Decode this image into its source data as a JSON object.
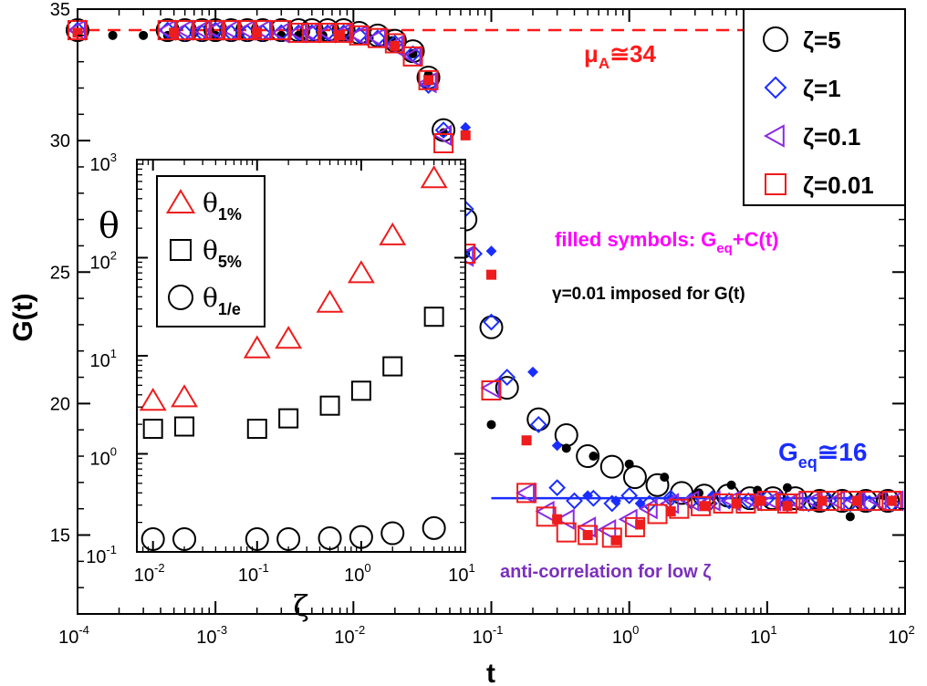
{
  "colors": {
    "zeta5": "#000000",
    "zeta1": "#1a2dff",
    "zeta01": "#8a2be2",
    "zeta001": "#ee1c1c",
    "filled_note": "#ff00ff",
    "mu_line": "#ff1a1a",
    "geq_line": "#1a2dff",
    "anticorr": "#7b2fbe"
  },
  "chart_data": [
    {
      "type": "scatter",
      "title": "",
      "xlabel": "t",
      "ylabel": "G(t)",
      "xscale": "log",
      "xlim": [
        0.0001,
        100
      ],
      "ylim": [
        12,
        35
      ],
      "x_ticks": [
        {
          "base": "10",
          "exp": "-4",
          "value": 0.0001
        },
        {
          "base": "10",
          "exp": "-3",
          "value": 0.001
        },
        {
          "base": "10",
          "exp": "-2",
          "value": 0.01
        },
        {
          "base": "10",
          "exp": "-1",
          "value": 0.1
        },
        {
          "base": "10",
          "exp": "0",
          "value": 1
        },
        {
          "base": "10",
          "exp": "1",
          "value": 10
        },
        {
          "base": "10",
          "exp": "2",
          "value": 100
        }
      ],
      "y_ticks": [
        {
          "label": "15",
          "value": 15
        },
        {
          "label": "20",
          "value": 20
        },
        {
          "label": "25",
          "value": 25
        },
        {
          "label": "30",
          "value": 30
        },
        {
          "label": "35",
          "value": 35
        }
      ],
      "legend": {
        "placement": "top-right",
        "entries": [
          {
            "label": "ζ=5",
            "marker": "circle",
            "color": "#000000"
          },
          {
            "label": "ζ=1",
            "marker": "diamond",
            "color": "#1a2dff"
          },
          {
            "label": "ζ=0.1",
            "marker": "triangle-left",
            "color": "#8a2be2"
          },
          {
            "label": "ζ=0.01",
            "marker": "square",
            "color": "#ee1c1c"
          }
        ]
      },
      "reference_lines": [
        {
          "name": "mu_A",
          "y": 34.2,
          "x_from": 0.0001,
          "x_to": 100,
          "style": "dashed",
          "color": "#ff1a1a"
        },
        {
          "name": "G_eq",
          "y": 16.4,
          "x_from": 0.1,
          "x_to": 100,
          "style": "solid",
          "color": "#1a2dff"
        }
      ],
      "annotations": {
        "mu": {
          "main": "μ",
          "sub": "A",
          "rest": "≅34"
        },
        "geq": {
          "main": "G",
          "sub": "eq",
          "rest": "≅16"
        },
        "filled": {
          "prefix": "filled symbols: G",
          "sub": "eq",
          "rest": "+C(t)"
        },
        "gamma": "γ=0.01 imposed for G(t)",
        "anticorr": "anti-correlation for low ζ"
      },
      "series": [
        {
          "name": "ζ=5",
          "marker": "circle",
          "filled": false,
          "color": "#000000",
          "x": [
            0.0001,
            0.00045,
            0.0006,
            0.0008,
            0.001,
            0.0013,
            0.0017,
            0.0022,
            0.003,
            0.004,
            0.005,
            0.0065,
            0.0085,
            0.011,
            0.015,
            0.02,
            0.027,
            0.035,
            0.045,
            0.065,
            0.1,
            0.13,
            0.22,
            0.35,
            0.5,
            0.75,
            1.1,
            1.6,
            2.4,
            3.5,
            5.2,
            7.5,
            11,
            16,
            24,
            35,
            52,
            75
          ],
          "y": [
            34.2,
            34.2,
            34.2,
            34.2,
            34.2,
            34.2,
            34.2,
            34.2,
            34.2,
            34.2,
            34.2,
            34.2,
            34.2,
            34.1,
            34.0,
            33.8,
            33.4,
            32.4,
            30.4,
            27.0,
            22.9,
            20.6,
            19.4,
            18.8,
            18.0,
            17.6,
            17.2,
            16.9,
            16.6,
            16.5,
            16.5,
            16.4,
            16.4,
            16.4,
            16.3,
            16.3,
            16.3,
            16.3
          ]
        },
        {
          "name": "ζ=5 G_eq+C(t)",
          "marker": "dot",
          "filled": true,
          "color": "#000000",
          "x": [
            0.0001,
            0.00018,
            0.0003,
            0.00045,
            0.0007,
            0.001,
            0.0015,
            0.002,
            0.003,
            0.004,
            0.006,
            0.009,
            0.013,
            0.019,
            0.027,
            0.035,
            0.045,
            0.065,
            0.1,
            0.35,
            0.55,
            1.0,
            1.8,
            3.2,
            5.5,
            8.5,
            14,
            23,
            40,
            70
          ],
          "y": [
            34.1,
            34.0,
            34.0,
            34.0,
            34.1,
            34.0,
            34.0,
            34.1,
            34.0,
            34.0,
            34.0,
            33.9,
            33.9,
            33.8,
            33.3,
            32.5,
            30.3,
            25.7,
            19.2,
            18.3,
            18.0,
            17.7,
            17.2,
            16.6,
            16.9,
            16.7,
            16.8,
            16.1,
            15.7,
            16.5
          ]
        },
        {
          "name": "ζ=1",
          "marker": "diamond",
          "filled": false,
          "color": "#1a2dff",
          "x": [
            0.0001,
            0.00045,
            0.0006,
            0.0008,
            0.001,
            0.0013,
            0.0017,
            0.0022,
            0.003,
            0.004,
            0.005,
            0.0065,
            0.0085,
            0.011,
            0.015,
            0.02,
            0.027,
            0.035,
            0.045,
            0.065,
            0.075,
            0.1,
            0.13,
            0.22,
            0.3,
            0.4,
            0.55,
            0.75,
            1.0,
            1.4,
            2.0,
            2.8,
            3.8,
            5.3,
            7.3,
            10,
            14,
            20,
            28,
            40,
            55,
            80
          ],
          "y": [
            34.2,
            34.2,
            34.1,
            34.1,
            34.2,
            34.1,
            34.1,
            34.1,
            34.1,
            34.1,
            34.1,
            34.1,
            34.1,
            34.0,
            33.9,
            33.7,
            33.3,
            32.1,
            30.4,
            27.4,
            25.7,
            23.1,
            21.0,
            19.2,
            16.8,
            16.3,
            16.4,
            16.2,
            16.5,
            16.2,
            16.4,
            16.3,
            16.2,
            16.3,
            16.3,
            16.4,
            16.2,
            16.2,
            16.3,
            16.2,
            16.2,
            16.2
          ]
        },
        {
          "name": "ζ=1 G_eq+C(t)",
          "marker": "diamond-small",
          "filled": true,
          "color": "#1a2dff",
          "x": [
            0.0001,
            0.0005,
            0.002,
            0.008,
            0.02,
            0.035,
            0.065,
            0.1,
            0.2,
            0.3,
            0.5,
            0.8,
            1.2,
            2.0,
            4.0,
            8.0,
            14,
            25,
            50,
            80
          ],
          "y": [
            34.1,
            34.1,
            34.0,
            34.0,
            33.6,
            32.2,
            30.5,
            25.8,
            21.2,
            18.4,
            16.5,
            16.3,
            16.2,
            16.4,
            16.5,
            16.4,
            16.3,
            16.3,
            16.4,
            16.3
          ]
        },
        {
          "name": "ζ=0.1",
          "marker": "triangle-left",
          "filled": false,
          "color": "#8a2be2",
          "x": [
            0.0001,
            0.00045,
            0.0006,
            0.0008,
            0.001,
            0.0013,
            0.0017,
            0.0022,
            0.003,
            0.004,
            0.005,
            0.0065,
            0.0085,
            0.011,
            0.015,
            0.02,
            0.027,
            0.035,
            0.045,
            0.065,
            0.1,
            0.18,
            0.25,
            0.35,
            0.5,
            0.7,
            1.0,
            1.4,
            2.0,
            2.8,
            4.0,
            5.6,
            8.0,
            11,
            16,
            22,
            32,
            45,
            64,
            85
          ],
          "y": [
            34.2,
            34.2,
            34.2,
            34.2,
            34.2,
            34.2,
            34.2,
            34.2,
            34.1,
            34.1,
            34.1,
            34.1,
            34.1,
            34.0,
            33.9,
            33.6,
            33.2,
            32.2,
            30.2,
            25.6,
            20.6,
            16.6,
            15.9,
            15.6,
            15.3,
            15.2,
            15.6,
            16.0,
            16.2,
            16.3,
            16.3,
            16.3,
            16.3,
            16.3,
            16.3,
            16.3,
            16.3,
            16.3,
            16.3,
            16.3
          ]
        },
        {
          "name": "ζ=0.01",
          "marker": "square",
          "filled": false,
          "color": "#ee1c1c",
          "x": [
            0.0001,
            0.00045,
            0.0006,
            0.0008,
            0.001,
            0.0013,
            0.0017,
            0.0022,
            0.003,
            0.004,
            0.005,
            0.0065,
            0.0085,
            0.011,
            0.015,
            0.02,
            0.027,
            0.035,
            0.045,
            0.065,
            0.1,
            0.18,
            0.25,
            0.35,
            0.5,
            0.75,
            1.1,
            1.6,
            2.3,
            3.3,
            4.8,
            7.0,
            10,
            14,
            20,
            28,
            40,
            56,
            80
          ],
          "y": [
            34.2,
            34.2,
            34.2,
            34.2,
            34.2,
            34.2,
            34.2,
            34.2,
            34.2,
            34.1,
            34.1,
            34.1,
            34.1,
            34.0,
            33.9,
            33.7,
            33.2,
            32.3,
            29.9,
            25.7,
            20.5,
            16.6,
            15.7,
            15.1,
            15.0,
            14.9,
            15.3,
            15.8,
            16.0,
            16.1,
            16.2,
            16.2,
            16.3,
            16.2,
            16.3,
            16.3,
            16.3,
            16.3,
            16.3
          ]
        },
        {
          "name": "ζ=0.01 G_eq+C(t)",
          "marker": "square-small",
          "filled": true,
          "color": "#ee1c1c",
          "x": [
            0.0001,
            0.0005,
            0.002,
            0.008,
            0.02,
            0.035,
            0.065,
            0.1,
            0.18,
            0.3,
            0.5,
            0.8,
            1.2,
            2.0,
            3.5,
            6.0,
            9.0,
            14,
            25,
            45,
            80
          ],
          "y": [
            34.1,
            34.1,
            34.1,
            34.0,
            33.6,
            32.3,
            30.2,
            24.9,
            18.6,
            15.6,
            15.0,
            14.8,
            15.4,
            15.9,
            16.1,
            16.2,
            16.3,
            16.1,
            16.3,
            16.3,
            16.3
          ]
        }
      ]
    },
    {
      "type": "scatter",
      "title": "",
      "xlabel": "ζ",
      "ylabel": "θ",
      "xscale": "log",
      "yscale": "log",
      "xlim": [
        0.007,
        10
      ],
      "ylim": [
        0.1,
        1000
      ],
      "x_ticks": [
        {
          "base": "10",
          "exp": "-2",
          "value": 0.01
        },
        {
          "base": "10",
          "exp": "-1",
          "value": 0.1
        },
        {
          "base": "10",
          "exp": "0",
          "value": 1
        },
        {
          "base": "10",
          "exp": "1",
          "value": 10
        }
      ],
      "y_ticks": [
        {
          "base": "10",
          "exp": "-1",
          "value": 0.1
        },
        {
          "base": "10",
          "exp": "0",
          "value": 1
        },
        {
          "base": "10",
          "exp": "1",
          "value": 10
        },
        {
          "base": "10",
          "exp": "2",
          "value": 100
        },
        {
          "base": "10",
          "exp": "3",
          "value": 1000
        }
      ],
      "legend": {
        "placement": "top-left",
        "entries": [
          {
            "label": "θ",
            "sub": "1%",
            "marker": "triangle",
            "color": "#ee1c1c"
          },
          {
            "label": "θ",
            "sub": "5%",
            "marker": "square",
            "color": "#000000"
          },
          {
            "label": "θ",
            "sub": "1/e",
            "marker": "circle",
            "color": "#000000"
          }
        ]
      },
      "series": [
        {
          "name": "θ1%",
          "marker": "triangle",
          "color": "#ee1c1c",
          "x": [
            0.01,
            0.02,
            0.1,
            0.2,
            0.5,
            1,
            2,
            5
          ],
          "y": [
            3.5,
            3.8,
            12,
            15,
            35,
            70,
            170,
            650
          ]
        },
        {
          "name": "θ5%",
          "marker": "square",
          "color": "#000000",
          "x": [
            0.01,
            0.02,
            0.1,
            0.2,
            0.5,
            1,
            2,
            5
          ],
          "y": [
            1.8,
            1.9,
            1.8,
            2.3,
            3.1,
            4.4,
            7.8,
            25
          ]
        },
        {
          "name": "θ1/e",
          "marker": "circle",
          "color": "#000000",
          "x": [
            0.01,
            0.02,
            0.1,
            0.2,
            0.5,
            1,
            2,
            5
          ],
          "y": [
            0.135,
            0.135,
            0.135,
            0.135,
            0.138,
            0.142,
            0.155,
            0.175
          ]
        }
      ]
    }
  ]
}
